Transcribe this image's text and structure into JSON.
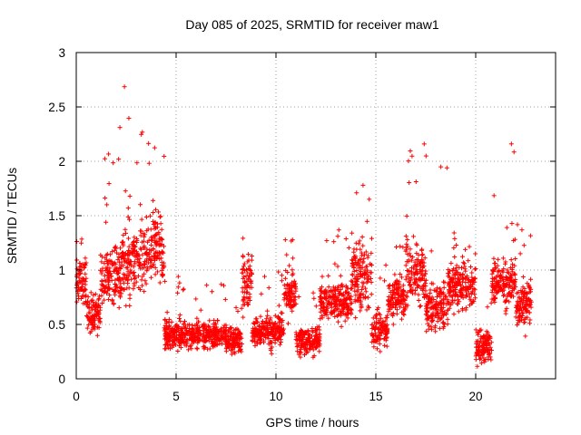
{
  "chart_data": {
    "type": "scatter",
    "title": "Day 085 of 2025, SRMTID for receiver maw1",
    "xlabel": "GPS time / hours",
    "ylabel": "SRMTID / TECUs",
    "xlim": [
      0,
      24
    ],
    "ylim": [
      0,
      3
    ],
    "xticks": [
      0,
      5,
      10,
      15,
      20
    ],
    "xtick_labels": [
      "0",
      "5",
      "10",
      "15",
      "20"
    ],
    "yticks": [
      0,
      0.5,
      1,
      1.5,
      2,
      2.5,
      3
    ],
    "ytick_labels": [
      "0",
      "0.5",
      "1",
      "1.5",
      "2",
      "2.5",
      "3"
    ],
    "grid": true,
    "marker": "+",
    "color": "#ff0000",
    "series": [
      {
        "name": "SRMTID",
        "segments": [
          {
            "t0": 0.0,
            "t1": 0.5,
            "base": 0.9,
            "spread": 0.35,
            "peak": 1.4
          },
          {
            "t0": 0.5,
            "t1": 1.2,
            "base": 0.6,
            "spread": 0.3,
            "peak": 1.1
          },
          {
            "t0": 1.2,
            "t1": 2.3,
            "base": 0.95,
            "spread": 0.5,
            "peak": 2.5
          },
          {
            "t0": 2.3,
            "t1": 3.5,
            "base": 1.1,
            "spread": 0.6,
            "peak": 2.75
          },
          {
            "t0": 3.5,
            "t1": 4.4,
            "base": 1.2,
            "spread": 0.55,
            "peak": 2.5
          },
          {
            "t0": 4.4,
            "t1": 7.5,
            "base": 0.4,
            "spread": 0.2,
            "peak": 0.95
          },
          {
            "t0": 7.5,
            "t1": 8.3,
            "base": 0.35,
            "spread": 0.2,
            "peak": 0.8
          },
          {
            "t0": 8.3,
            "t1": 8.8,
            "base": 0.9,
            "spread": 0.45,
            "peak": 1.55
          },
          {
            "t0": 8.8,
            "t1": 10.4,
            "base": 0.45,
            "spread": 0.25,
            "peak": 1.0
          },
          {
            "t0": 10.4,
            "t1": 11.0,
            "base": 0.8,
            "spread": 0.35,
            "peak": 1.3
          },
          {
            "t0": 11.0,
            "t1": 12.2,
            "base": 0.35,
            "spread": 0.2,
            "peak": 0.8
          },
          {
            "t0": 12.2,
            "t1": 13.8,
            "base": 0.7,
            "spread": 0.3,
            "peak": 1.45
          },
          {
            "t0": 13.8,
            "t1": 14.8,
            "base": 0.95,
            "spread": 0.5,
            "peak": 1.97
          },
          {
            "t0": 14.8,
            "t1": 15.6,
            "base": 0.45,
            "spread": 0.3,
            "peak": 1.1
          },
          {
            "t0": 15.6,
            "t1": 16.5,
            "base": 0.75,
            "spread": 0.35,
            "peak": 1.4
          },
          {
            "t0": 16.5,
            "t1": 17.5,
            "base": 0.95,
            "spread": 0.45,
            "peak": 2.37
          },
          {
            "t0": 17.5,
            "t1": 18.6,
            "base": 0.65,
            "spread": 0.35,
            "peak": 2.2
          },
          {
            "t0": 18.6,
            "t1": 20.0,
            "base": 0.85,
            "spread": 0.35,
            "peak": 1.35
          },
          {
            "t0": 20.0,
            "t1": 20.8,
            "base": 0.3,
            "spread": 0.25,
            "peak": 0.9
          },
          {
            "t0": 20.8,
            "t1": 22.0,
            "base": 0.9,
            "spread": 0.4,
            "peak": 2.2
          },
          {
            "t0": 22.0,
            "t1": 22.8,
            "base": 0.7,
            "spread": 0.35,
            "peak": 1.45
          }
        ]
      }
    ]
  }
}
